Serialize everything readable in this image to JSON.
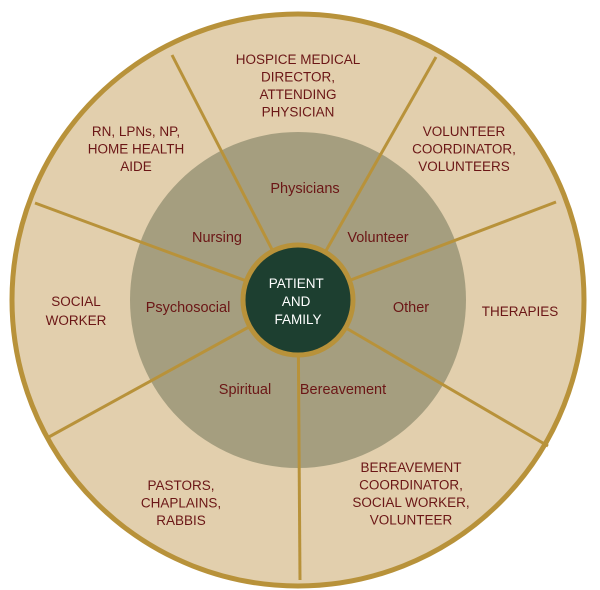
{
  "colors": {
    "outer_ring": "#e2cfad",
    "inner_ring": "#a59e7f",
    "center": "#1d3f30",
    "line": "#b8923a",
    "text": "#6b1616",
    "center_text": "#ffffff"
  },
  "center": {
    "lines": [
      "PATIENT",
      "AND",
      "FAMILY"
    ]
  },
  "segments": [
    {
      "inner_label": "Physicians",
      "outer_lines": [
        "HOSPICE MEDICAL",
        "DIRECTOR,",
        "ATTENDING",
        "PHYSICIAN"
      ]
    },
    {
      "inner_label": "Volunteer",
      "outer_lines": [
        "VOLUNTEER",
        "COORDINATOR,",
        "VOLUNTEERS"
      ]
    },
    {
      "inner_label": "Other",
      "outer_lines": [
        "THERAPIES"
      ]
    },
    {
      "inner_label": "Bereavement",
      "outer_lines": [
        "BEREAVEMENT",
        "COORDINATOR,",
        "SOCIAL WORKER,",
        "VOLUNTEER"
      ]
    },
    {
      "inner_label": "Spiritual",
      "outer_lines": [
        "PASTORS,",
        "CHAPLAINS,",
        "RABBIS"
      ]
    },
    {
      "inner_label": "Psychosocial",
      "outer_lines": [
        "SOCIAL",
        "WORKER"
      ]
    },
    {
      "inner_label": "Nursing",
      "outer_lines": [
        "RN, LPNs, NP,",
        "HOME HEALTH",
        "AIDE"
      ]
    }
  ]
}
